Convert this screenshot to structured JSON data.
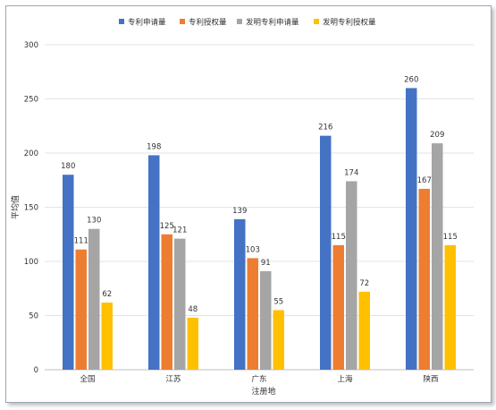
{
  "chart_data": {
    "type": "bar",
    "categories": [
      "全国",
      "江苏",
      "广东",
      "上海",
      "陕西"
    ],
    "series": [
      {
        "name": "专利申请量",
        "color": "#4472C4",
        "values": [
          180,
          198,
          139,
          216,
          260
        ]
      },
      {
        "name": "专利授权量",
        "color": "#ED7D31",
        "values": [
          111,
          125,
          103,
          115,
          167
        ]
      },
      {
        "name": "发明专利申请量",
        "color": "#A5A5A5",
        "values": [
          130,
          121,
          91,
          174,
          209
        ]
      },
      {
        "name": "发明专利授权量",
        "color": "#FFC000",
        "values": [
          62,
          48,
          55,
          72,
          115
        ]
      }
    ],
    "xlabel": "注册地",
    "ylabel": "平均值",
    "ylim": [
      0,
      300
    ],
    "yticks": [
      0,
      50,
      100,
      150,
      200,
      250,
      300
    ],
    "grid": true,
    "legend": "top-center"
  }
}
